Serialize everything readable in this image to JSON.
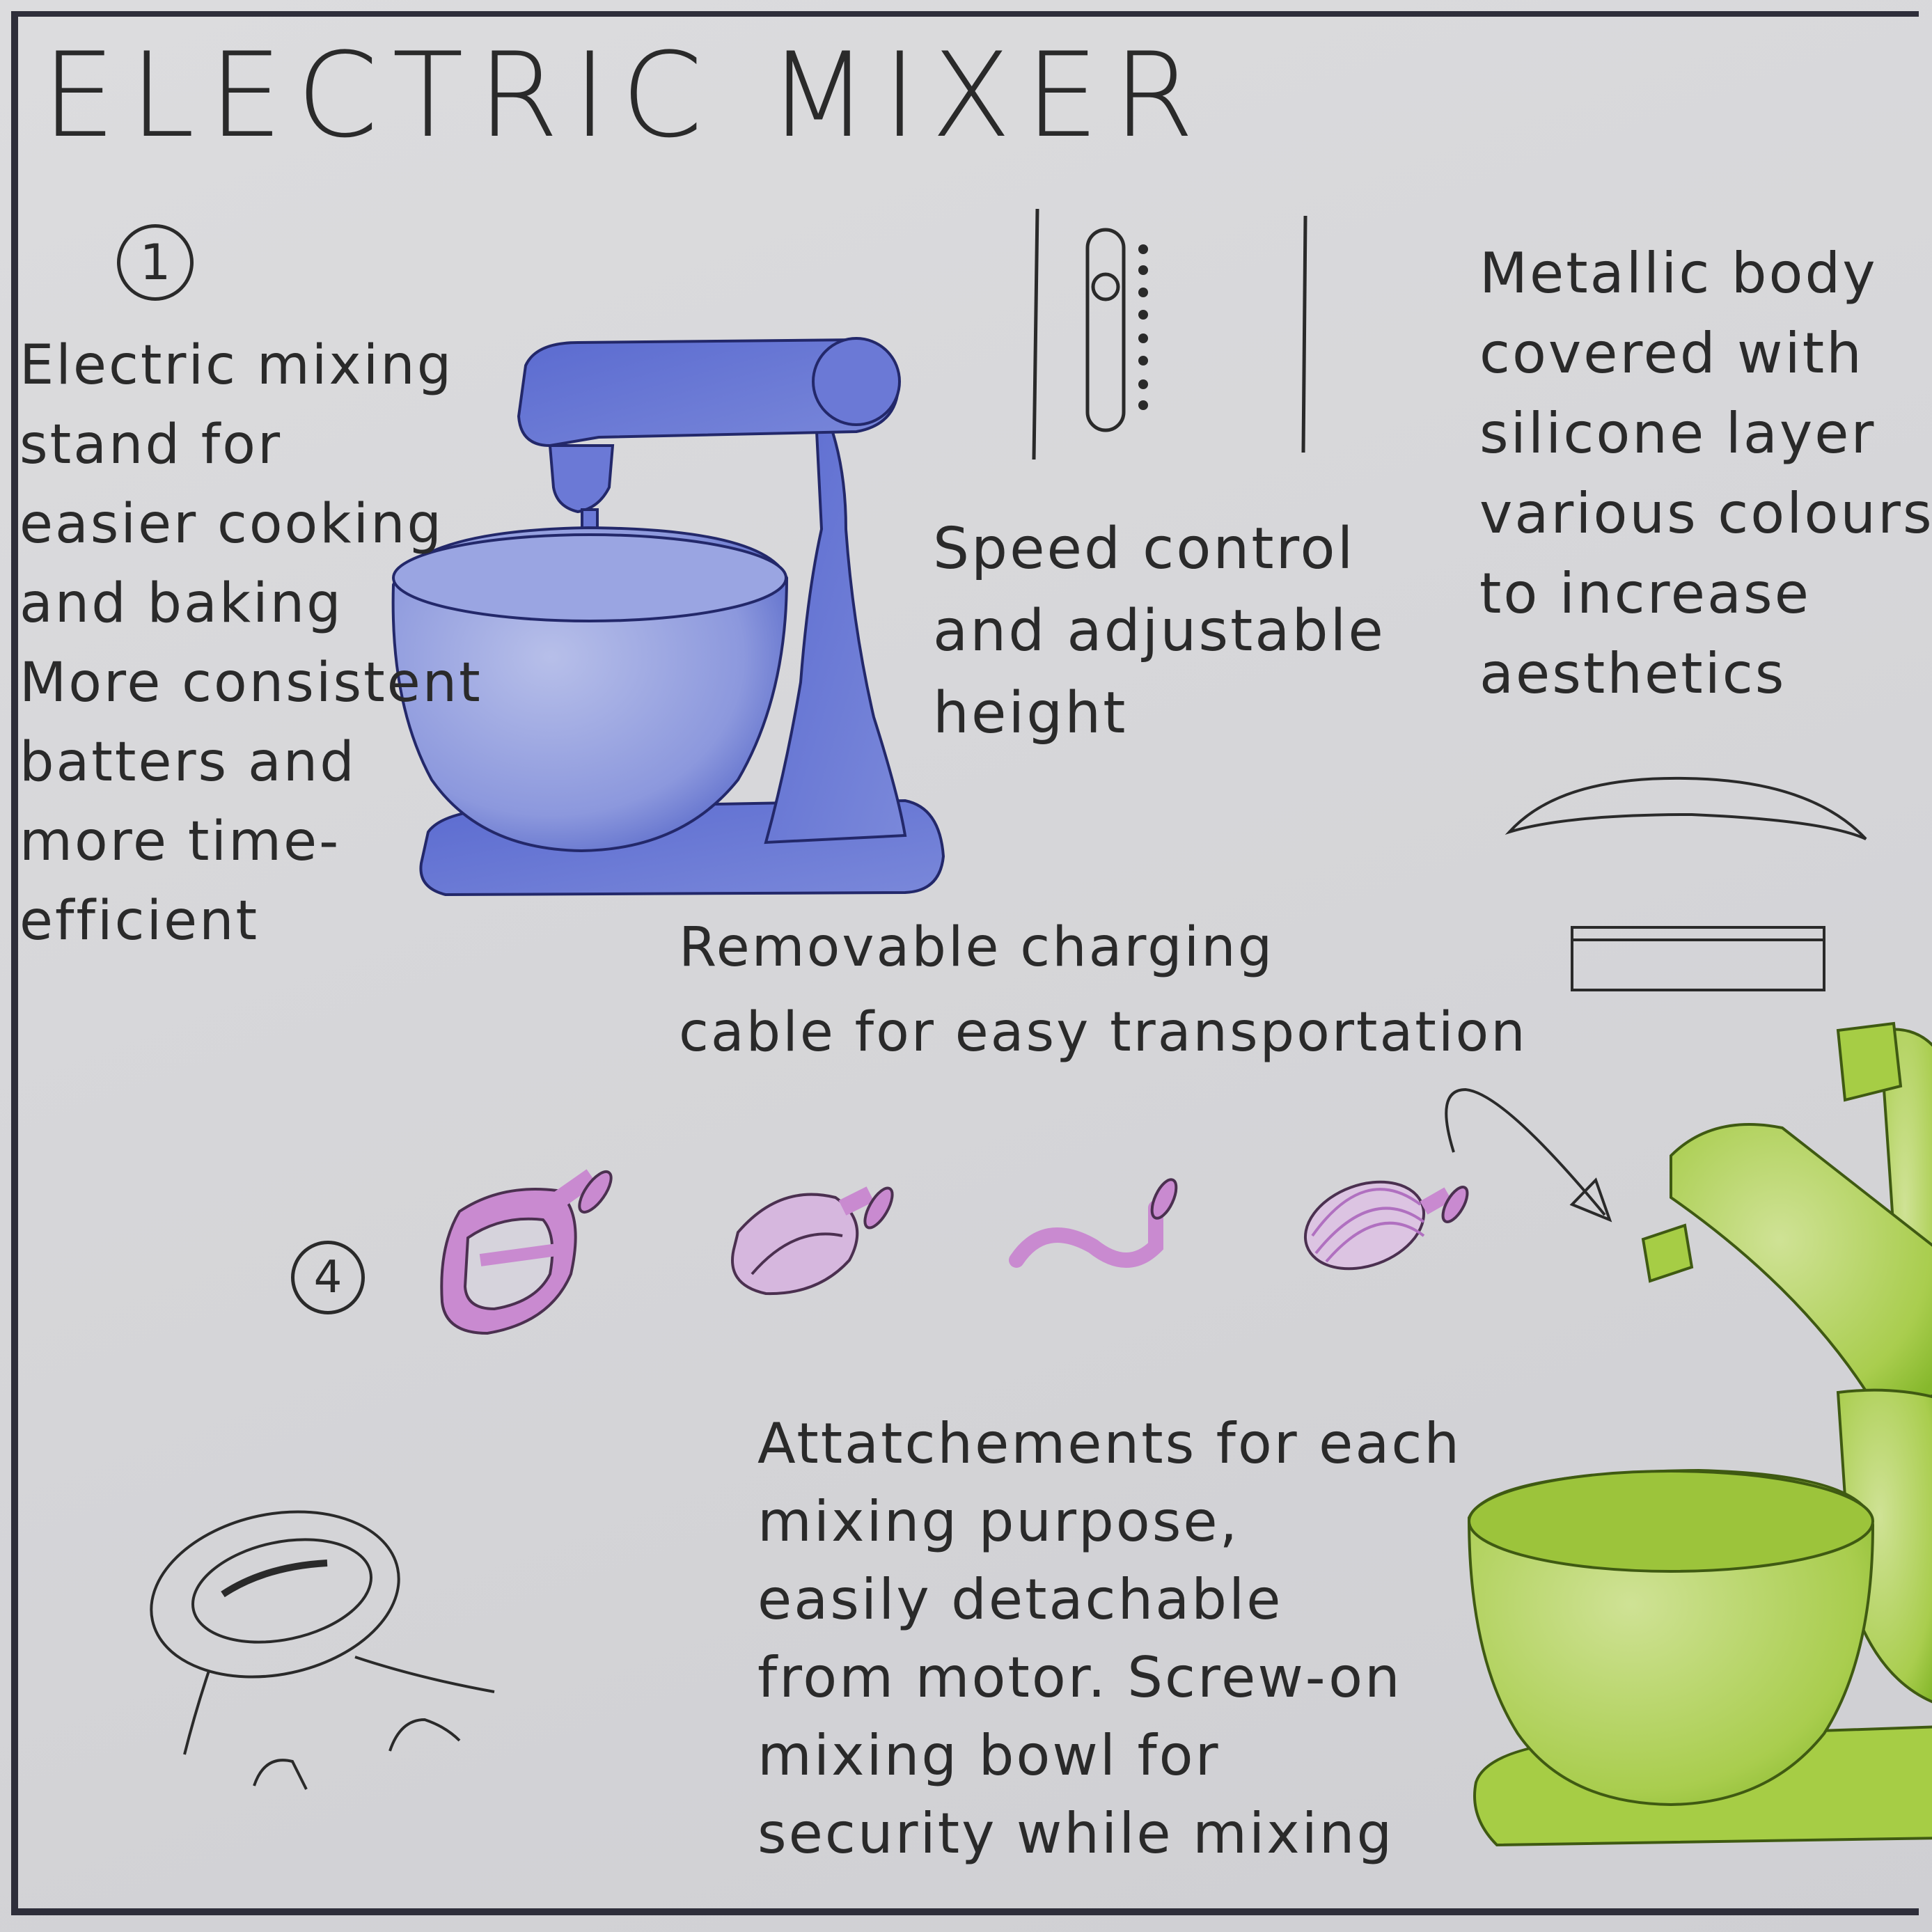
{
  "title": "ELECTRIC MIXER",
  "markers": [
    "1",
    "4"
  ],
  "notes": {
    "stand": [
      "Electric mixing",
      "stand for",
      "easier cooking",
      "and baking",
      "More consistent",
      "batters and",
      "more time-",
      "efficient"
    ],
    "speed": [
      "Speed control",
      "and adjustable",
      "height"
    ],
    "body": [
      "Metallic body",
      "covered with",
      "silicone layer",
      "various colours",
      "to increase",
      "aesthetics"
    ],
    "cable": [
      "Removable charging",
      "cable for easy transportation"
    ],
    "attachments": [
      "Attatchements for each",
      "mixing purpose,",
      "easily detachable",
      "from motor. Screw-on",
      "mixing bowl for",
      "security while mixing"
    ]
  },
  "colors": {
    "paper": "#d8d8db",
    "ink": "#2a2a2a",
    "mixer_blue": "#6f7fd6",
    "mixer_blue_dark": "#2f3fb0",
    "mixer_green": "#a6cd45",
    "attachment_pink": "#c98ad0"
  }
}
